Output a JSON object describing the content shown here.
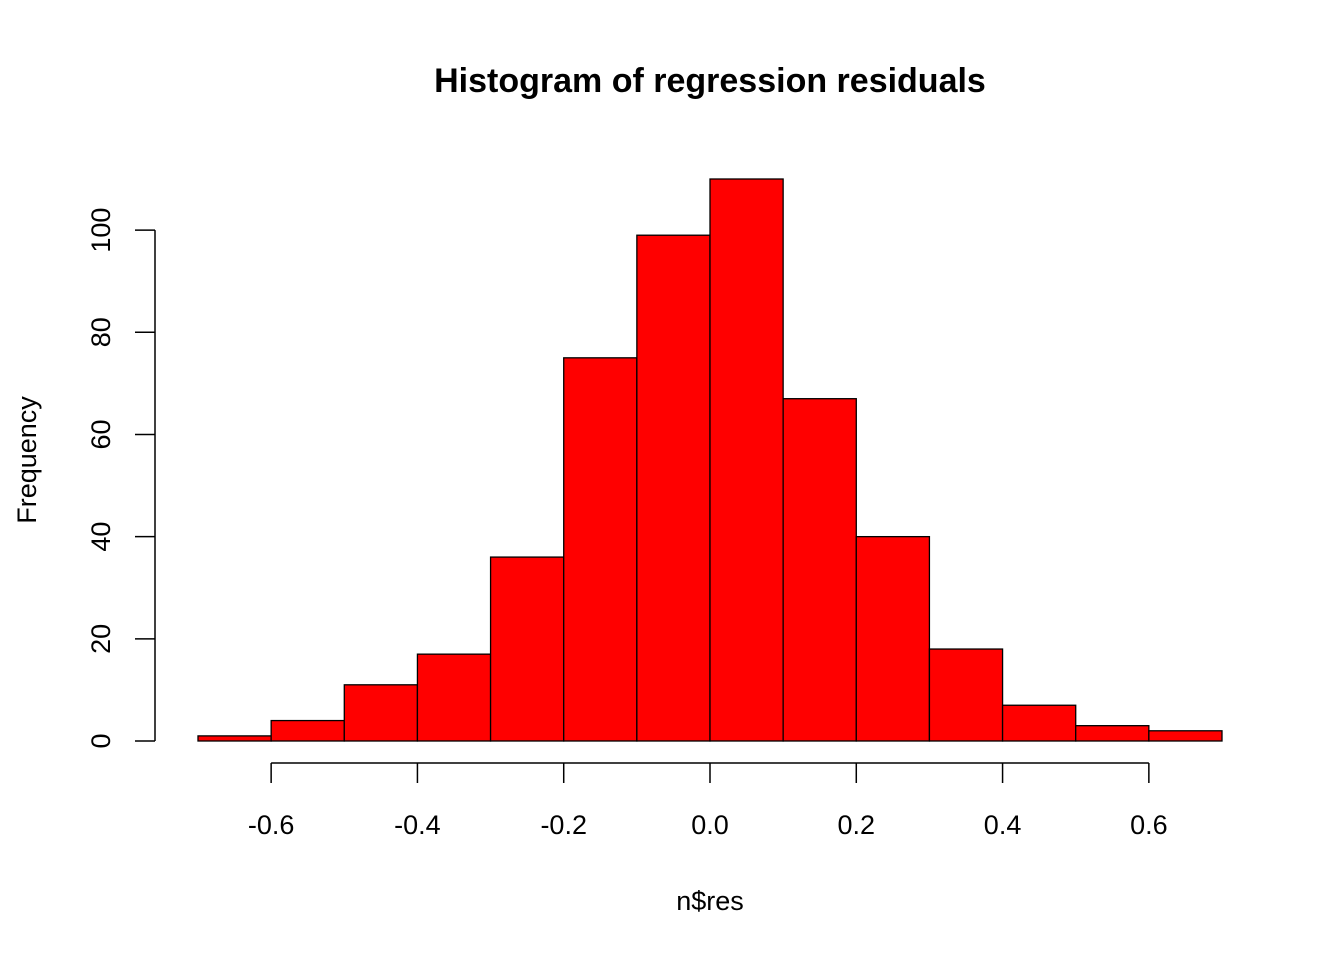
{
  "chart_data": {
    "type": "bar",
    "title": "Histogram of regression residuals",
    "xlabel": "n$res",
    "ylabel": "Frequency",
    "bin_edges": [
      -0.7,
      -0.6,
      -0.5,
      -0.4,
      -0.3,
      -0.2,
      -0.1,
      0.0,
      0.1,
      0.2,
      0.3,
      0.4,
      0.5,
      0.6,
      0.7
    ],
    "values": [
      1,
      4,
      11,
      17,
      36,
      75,
      99,
      110,
      67,
      40,
      18,
      7,
      3,
      2
    ],
    "xlim": [
      -0.7,
      0.7
    ],
    "ylim": [
      0,
      110
    ],
    "x_ticks": [
      {
        "value": -0.6,
        "label": "-0.6"
      },
      {
        "value": -0.4,
        "label": "-0.4"
      },
      {
        "value": -0.2,
        "label": "-0.2"
      },
      {
        "value": 0.0,
        "label": "0.0"
      },
      {
        "value": 0.2,
        "label": "0.2"
      },
      {
        "value": 0.4,
        "label": "0.4"
      },
      {
        "value": 0.6,
        "label": "0.6"
      }
    ],
    "y_ticks": [
      {
        "value": 0,
        "label": "0"
      },
      {
        "value": 20,
        "label": "20"
      },
      {
        "value": 40,
        "label": "40"
      },
      {
        "value": 60,
        "label": "60"
      },
      {
        "value": 80,
        "label": "80"
      },
      {
        "value": 100,
        "label": "100"
      }
    ],
    "bar_color": "#ff0000",
    "bar_border_color": "#000000",
    "grid": false
  }
}
